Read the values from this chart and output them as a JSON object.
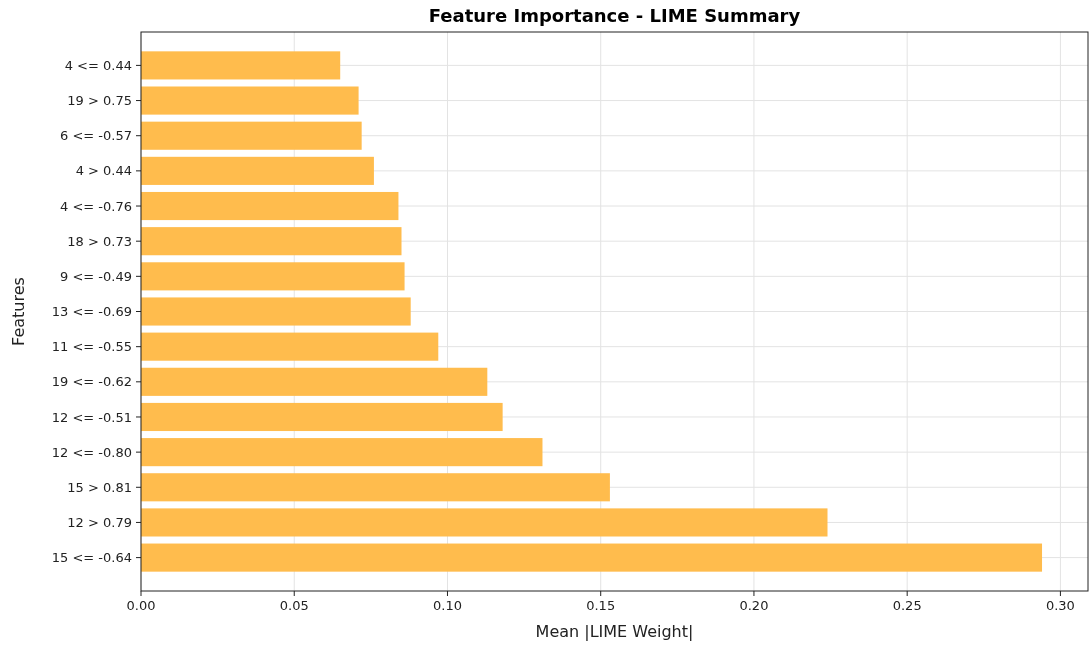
{
  "chart_data": {
    "type": "bar",
    "orientation": "horizontal",
    "title": "Feature Importance - LIME Summary",
    "xlabel": "Mean |LIME Weight|",
    "ylabel": "Features",
    "categories": [
      "4 <= 0.44",
      "19 > 0.75",
      "6 <= -0.57",
      "4 > 0.44",
      "4 <= -0.76",
      "18 > 0.73",
      "9 <= -0.49",
      "13 <= -0.69",
      "11 <= -0.55",
      "19 <= -0.62",
      "12 <= -0.51",
      "12 <= -0.80",
      "15 > 0.81",
      "12 > 0.79",
      "15 <= -0.64"
    ],
    "values": [
      0.065,
      0.071,
      0.072,
      0.076,
      0.084,
      0.085,
      0.086,
      0.088,
      0.097,
      0.113,
      0.118,
      0.131,
      0.153,
      0.224,
      0.294
    ],
    "color": "#ffbc4d",
    "xlim": [
      0,
      0.309
    ],
    "xticks": [
      {
        "value": 0,
        "label": "0.00"
      },
      {
        "value": 0.05,
        "label": "0.05"
      },
      {
        "value": 0.1,
        "label": "0.10"
      },
      {
        "value": 0.15,
        "label": "0.15"
      },
      {
        "value": 0.2,
        "label": "0.20"
      },
      {
        "value": 0.25,
        "label": "0.25"
      },
      {
        "value": 0.3,
        "label": "0.30"
      }
    ],
    "grid": true
  }
}
